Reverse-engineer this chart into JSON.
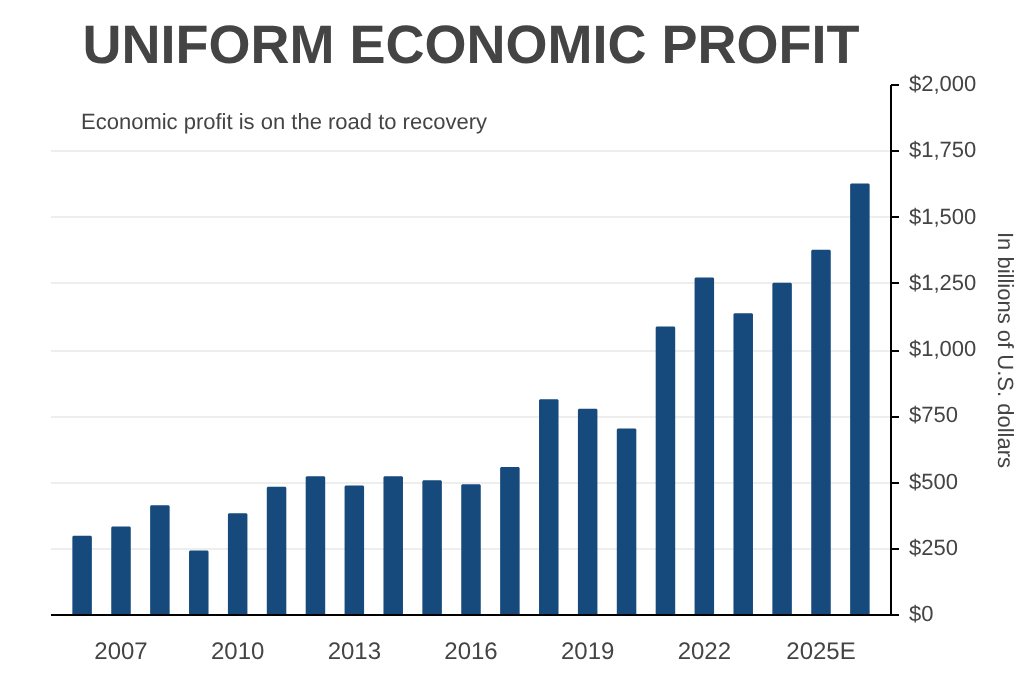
{
  "chart_data": {
    "type": "bar",
    "title": "UNIFORM ECONOMIC PROFIT",
    "ylabel": "In billions of U.S. dollars",
    "annotations": [
      "Economic profit is on the road to recovery"
    ],
    "categories": [
      null,
      "2007",
      null,
      null,
      "2010",
      null,
      null,
      "2013",
      null,
      null,
      "2016",
      null,
      null,
      "2019",
      null,
      null,
      "2022",
      null,
      null,
      "2025E",
      null
    ],
    "values": [
      295,
      330,
      410,
      240,
      380,
      480,
      520,
      485,
      520,
      505,
      490,
      555,
      810,
      775,
      700,
      1085,
      1270,
      1135,
      1250,
      1375,
      1625
    ],
    "color": "#174a7c",
    "ylim": [
      0,
      2000
    ],
    "yticks": [
      {
        "value": 0,
        "label": "$0"
      },
      {
        "value": 250,
        "label": "$250"
      },
      {
        "value": 500,
        "label": "$500"
      },
      {
        "value": 750,
        "label": "$750"
      },
      {
        "value": 1000,
        "label": "$1,000"
      },
      {
        "value": 1250,
        "label": "$1,250"
      },
      {
        "value": 1500,
        "label": "$1,500"
      },
      {
        "value": 1750,
        "label": "$1,750"
      },
      {
        "value": 2000,
        "label": "$2,000"
      }
    ],
    "grid": "y"
  }
}
